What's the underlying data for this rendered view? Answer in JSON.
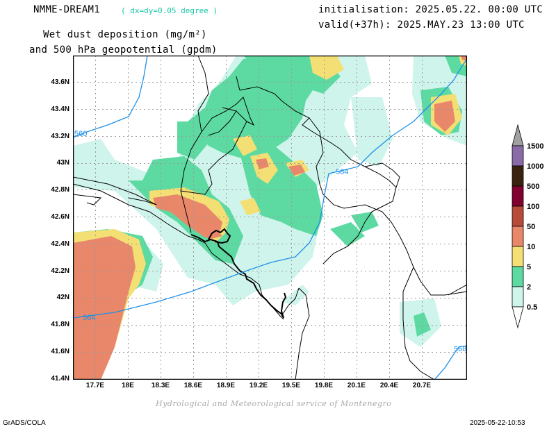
{
  "header": {
    "model": "NMME-DREAM1",
    "resolution": "( dx=dy=0.05 degree )",
    "init": "initialisation: 2025.05.22. 00:00 UTC",
    "valid": "valid(+37h): 2025.MAY.23 13:00 UTC",
    "title1": "Wet dust deposition (mg/m²)",
    "title2": "and 500 hPa geopotential (gpdm)"
  },
  "axes": {
    "lat_labels": [
      "43.6N",
      "43.4N",
      "43.2N",
      "43N",
      "42.8N",
      "42.6N",
      "42.4N",
      "42.2N",
      "42N",
      "41.8N",
      "41.6N",
      "41.4N"
    ],
    "lon_labels": [
      "17.7E",
      "18E",
      "18.3E",
      "18.6E",
      "18.9E",
      "19.2E",
      "19.5E",
      "19.8E",
      "20.1E",
      "20.4E",
      "20.7E"
    ]
  },
  "contours": {
    "labels": [
      "560",
      "564",
      "564",
      "568"
    ],
    "color": "#1e90e8"
  },
  "legend": {
    "labels": [
      "1500",
      "1000",
      "500",
      "100",
      "50",
      "10",
      "5",
      "2",
      "0.5"
    ],
    "colors": [
      "#a0a0a0",
      "#8b6aa8",
      "#3b2210",
      "#800030",
      "#b84a3a",
      "#e8876a",
      "#f4df75",
      "#5cdaa2",
      "#cff4ec",
      "#ffffff"
    ]
  },
  "credit": "Hydrological and Meteorological service of Montenegro",
  "footer": {
    "left": "GrADS/COLA",
    "right": "2025-05-22-10:53"
  }
}
